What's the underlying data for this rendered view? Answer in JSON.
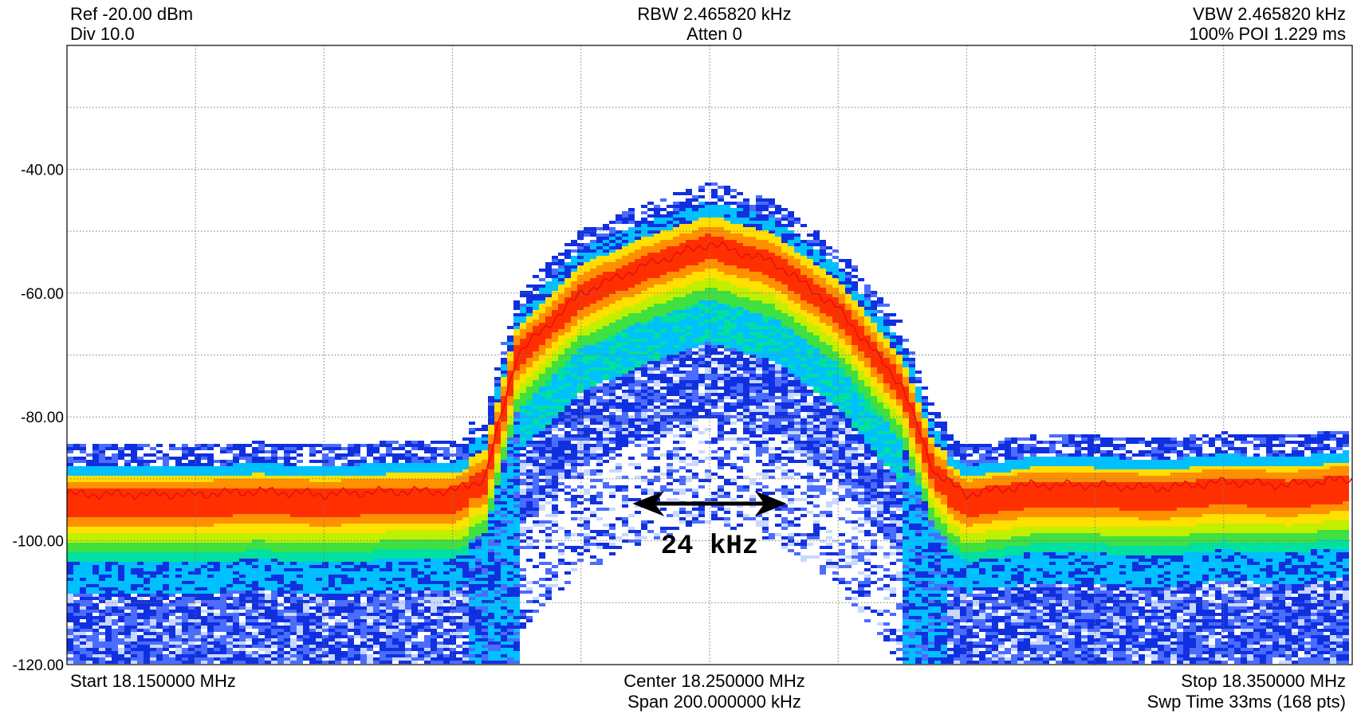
{
  "header": {
    "ref": "Ref -20.00 dBm",
    "div": "Div 10.0",
    "rbw": "RBW 2.465820 kHz",
    "atten": "Atten 0",
    "vbw": "VBW 2.465820 kHz",
    "poi": "100% POI 1.229 ms"
  },
  "footer": {
    "start": "Start 18.150000 MHz",
    "center": "Center 18.250000 MHz",
    "span": "Span 200.000000 kHz",
    "stop": "Stop 18.350000 MHz",
    "swp": "Swp Time 33ms (168 pts)"
  },
  "chart_data": {
    "type": "heatmap",
    "title": "",
    "xlabel": "",
    "ylabel": "",
    "x_unit": "MHz",
    "y_unit": "dBm",
    "xlim": [
      18.15,
      18.35
    ],
    "ylim": [
      -120,
      -20
    ],
    "y_ticks": [
      "-40.00",
      "-60.00",
      "-80.00",
      "-100.00",
      "-120.00"
    ],
    "y_tick_values": [
      -40,
      -60,
      -80,
      -100,
      -120
    ],
    "grid": true,
    "colormap": [
      "#ffffff",
      "#c8d8ff",
      "#4a6cff",
      "#1030e0",
      "#00c0ff",
      "#00e0a0",
      "#40e040",
      "#c0f000",
      "#ffe000",
      "#ff9000",
      "#ff3000"
    ],
    "trace_color": "#e81010",
    "trace": {
      "x": [
        18.15,
        18.16,
        18.17,
        18.18,
        18.19,
        18.2,
        18.21,
        18.215,
        18.22,
        18.23,
        18.24,
        18.25,
        18.26,
        18.27,
        18.28,
        18.285,
        18.29,
        18.3,
        18.31,
        18.32,
        18.33,
        18.34,
        18.35
      ],
      "y": [
        -92.5,
        -92.5,
        -92.5,
        -92.0,
        -92.5,
        -92.0,
        -92.0,
        -90.0,
        -70.0,
        -60.0,
        -55.5,
        -52.0,
        -55.0,
        -62.5,
        -75.0,
        -89.0,
        -92.5,
        -91.0,
        -91.0,
        -91.5,
        -90.5,
        -91.0,
        -90.0
      ]
    },
    "annotation": {
      "label": "24 kHz",
      "from_x": 18.238,
      "to_x": 18.262,
      "y": -94
    }
  }
}
